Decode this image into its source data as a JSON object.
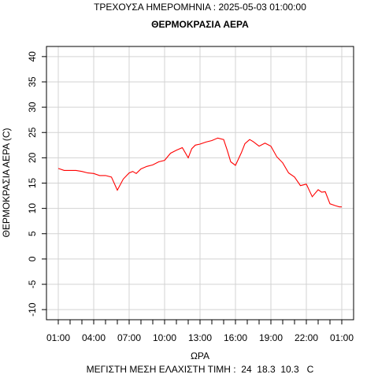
{
  "header": {
    "current_date_label": "ΤΡΕΧΟΥΣΑ ΗΜΕΡΟΜΗΝΙΑ : 2025-05-03 01:00:00"
  },
  "chart_data": {
    "type": "line",
    "title": "ΘΕΡΜΟΚΡΑΣΙΑ ΑΕΡΑ",
    "xlabel": "ΩΡΑ",
    "ylabel": "ΘΕΡΜΟΚΡΑΣΙΑ ΑΕΡΑ (C)",
    "footer": "ΜΕΓΙΣΤΗ ΜΕΣΗ ΕΛΑΧΙΣΤΗ ΤΙΜΗ :  24  18.3  10.3   C",
    "ylim": [
      -12,
      42
    ],
    "yticks": [
      "-10",
      "-5",
      "0",
      "5",
      "10",
      "15",
      "20",
      "25",
      "30",
      "35",
      "40"
    ],
    "ytick_values": [
      -10,
      -5,
      0,
      5,
      10,
      15,
      20,
      25,
      30,
      35,
      40
    ],
    "xticks": [
      "01:00",
      "04:00",
      "07:00",
      "10:00",
      "13:00",
      "16:00",
      "19:00",
      "22:00",
      "01:00"
    ],
    "xlim": [
      -1,
      25
    ],
    "grid": true,
    "line_color": "#ff0000",
    "series": [
      {
        "x": [
          0,
          0.5,
          1,
          1.5,
          2,
          2.5,
          3,
          3.5,
          4,
          4.5,
          5,
          5.5,
          6,
          6.3,
          6.6,
          7,
          7.5,
          8,
          8.5,
          9,
          9.5,
          10,
          10.5,
          11,
          11.3,
          11.6,
          12,
          12.5,
          13,
          13.5,
          14,
          14.3,
          14.6,
          15,
          15.5,
          15.8,
          16.2,
          16.5,
          17,
          17.5,
          18,
          18.5,
          19,
          19.5,
          20,
          20.5,
          21,
          21.5,
          22,
          22.3,
          22.6,
          23,
          23.5,
          23.8,
          24
        ],
        "y": [
          17.9,
          17.5,
          17.5,
          17.5,
          17.3,
          17.0,
          16.9,
          16.5,
          16.5,
          16.2,
          13.6,
          15.8,
          17.0,
          17.3,
          16.9,
          17.8,
          18.3,
          18.6,
          19.2,
          19.5,
          20.9,
          21.5,
          22.0,
          20.0,
          21.8,
          22.5,
          22.7,
          23.1,
          23.4,
          23.9,
          23.6,
          21.5,
          19.2,
          18.5,
          21.0,
          22.8,
          23.6,
          23.2,
          22.3,
          22.9,
          22.3,
          20.2,
          19.0,
          17.0,
          16.2,
          14.5,
          14.8,
          12.3,
          13.7,
          13.2,
          13.3,
          10.9,
          10.5,
          10.3,
          10.3
        ]
      }
    ],
    "stats": {
      "max": 24,
      "mean": 18.3,
      "min": 10.3,
      "unit": "C"
    }
  }
}
